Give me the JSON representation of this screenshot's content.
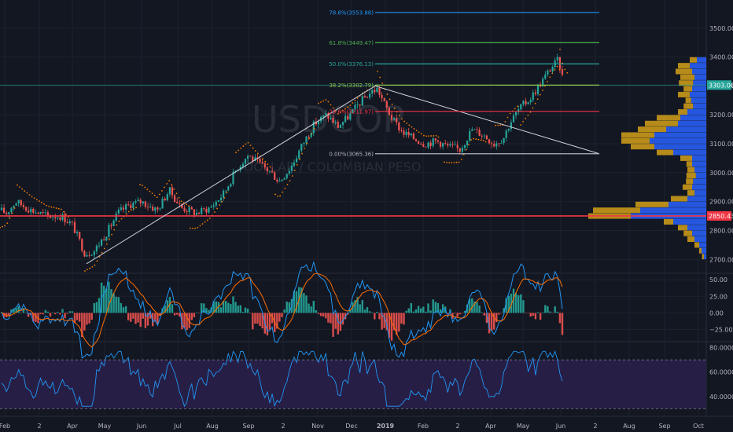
{
  "watermark": {
    "symbol": "USDCOP",
    "name": "DOLLAR / COLOMBIAN PESO"
  },
  "colors": {
    "background": "#131722",
    "up": "#26a69a",
    "down": "#ef5350",
    "grid": "#1e222d",
    "sar": "#f57c00",
    "macd": "#2196f3",
    "signal": "#ff6d00",
    "rsi": "#2196f3",
    "rsi_band": "#2a1f4a",
    "support": "#f23645",
    "trendline": "#d1d4dc",
    "vp_up": "#2962ff",
    "vp_down": "#d4a017"
  },
  "chart_data": [
    {
      "type": "candlestick",
      "panel": "price",
      "symbol": "USDCOP",
      "description_text": "DOLLAR / COLOMBIAN PESO",
      "x_ticks": [
        "Feb",
        "2",
        "Apr",
        "May",
        "Jun",
        "Jul",
        "Aug",
        "Sep",
        "2",
        "Nov",
        "Dec",
        "2019",
        "Feb",
        "2",
        "Apr",
        "May",
        "Jun",
        "2",
        "Aug",
        "Sep",
        "Oct"
      ],
      "y_ticks": [
        2700,
        2800,
        2900,
        3000,
        3100,
        3200,
        3300,
        3400,
        3500
      ],
      "y_tick_labels": [
        "2700.00",
        "2800.00",
        "2900.00",
        "3000.00",
        "3100.00",
        "3200.00",
        "3300.00",
        "3400.00",
        "3500.00"
      ],
      "ylim": [
        2660,
        3570
      ],
      "price_path": [
        [
          0,
          2870
        ],
        [
          8,
          2860
        ],
        [
          20,
          2900
        ],
        [
          40,
          2870
        ],
        [
          60,
          2850
        ],
        [
          78,
          2850
        ],
        [
          92,
          2820
        ],
        [
          108,
          2720
        ],
        [
          120,
          2730
        ],
        [
          135,
          2790
        ],
        [
          150,
          2860
        ],
        [
          165,
          2890
        ],
        [
          180,
          2900
        ],
        [
          200,
          2870
        ],
        [
          215,
          2940
        ],
        [
          230,
          2880
        ],
        [
          250,
          2860
        ],
        [
          268,
          2880
        ],
        [
          285,
          2930
        ],
        [
          300,
          3010
        ],
        [
          315,
          3060
        ],
        [
          330,
          3030
        ],
        [
          345,
          3000
        ],
        [
          355,
          2970
        ],
        [
          370,
          3020
        ],
        [
          385,
          3100
        ],
        [
          400,
          3170
        ],
        [
          415,
          3200
        ],
        [
          430,
          3160
        ],
        [
          445,
          3200
        ],
        [
          460,
          3250
        ],
        [
          472,
          3280
        ],
        [
          480,
          3290
        ],
        [
          490,
          3230
        ],
        [
          500,
          3180
        ],
        [
          512,
          3140
        ],
        [
          525,
          3120
        ],
        [
          540,
          3100
        ],
        [
          555,
          3110
        ],
        [
          570,
          3090
        ],
        [
          585,
          3080
        ],
        [
          600,
          3150
        ],
        [
          615,
          3130
        ],
        [
          628,
          3100
        ],
        [
          640,
          3120
        ],
        [
          648,
          3170
        ],
        [
          660,
          3220
        ],
        [
          675,
          3260
        ],
        [
          690,
          3320
        ],
        [
          700,
          3360
        ],
        [
          710,
          3390
        ],
        [
          716,
          3320
        ]
      ],
      "annotations": [
        {
          "type": "hline",
          "y": 2850.43,
          "label": "2850.43",
          "color": "#f23645"
        },
        {
          "type": "hline",
          "y": 3303.0,
          "label": "3303.00",
          "color": "#26a69a"
        },
        {
          "type": "trendline",
          "from": {
            "date": "Apr",
            "y": 2685
          },
          "to": {
            "date": "Dec",
            "y": 3300
          }
        },
        {
          "type": "trendline",
          "from": {
            "date": "Dec",
            "y": 3300
          },
          "to": {
            "date": "2",
            "y": 3065.36
          }
        }
      ],
      "fibonacci": [
        {
          "level": "78.6%",
          "value": 3553.88,
          "label": "78.6%(3553.88)",
          "color": "#2196f3"
        },
        {
          "level": "61.8%",
          "value": 3449.47,
          "label": "61.8%(3449.47)",
          "color": "#4caf50"
        },
        {
          "level": "50.0%",
          "value": 3376.13,
          "label": "50.0%(3376.13)",
          "color": "#26a69a"
        },
        {
          "level": "38.2%",
          "value": 3302.79,
          "label": "38.2%(3302.79)",
          "color": "#8bc34a"
        },
        {
          "level": "23.6%",
          "value": 3211.97,
          "label": "23.6%(3211.97)",
          "color": "#f23645"
        },
        {
          "level": "0.0%",
          "value": 3065.36,
          "label": "0.00%(3065.36)",
          "color": "#b2b5be"
        }
      ],
      "volume_profile": [
        {
          "price": 3390,
          "up": 20,
          "down": 15
        },
        {
          "price": 3370,
          "up": 35,
          "down": 25
        },
        {
          "price": 3350,
          "up": 30,
          "down": 35
        },
        {
          "price": 3330,
          "up": 25,
          "down": 30
        },
        {
          "price": 3310,
          "up": 28,
          "down": 30
        },
        {
          "price": 3290,
          "up": 30,
          "down": 18
        },
        {
          "price": 3270,
          "up": 35,
          "down": 25
        },
        {
          "price": 3250,
          "up": 32,
          "down": 12
        },
        {
          "price": 3230,
          "up": 28,
          "down": 20
        },
        {
          "price": 3210,
          "up": 40,
          "down": 20
        },
        {
          "price": 3190,
          "up": 55,
          "down": 50
        },
        {
          "price": 3170,
          "up": 60,
          "down": 70
        },
        {
          "price": 3150,
          "up": 85,
          "down": 60
        },
        {
          "price": 3130,
          "up": 110,
          "down": 70
        },
        {
          "price": 3110,
          "up": 120,
          "down": 60
        },
        {
          "price": 3090,
          "up": 110,
          "down": 50
        },
        {
          "price": 3070,
          "up": 70,
          "down": 35
        },
        {
          "price": 3050,
          "up": 30,
          "down": 25
        },
        {
          "price": 3030,
          "up": 30,
          "down": 12
        },
        {
          "price": 3010,
          "up": 25,
          "down": 15
        },
        {
          "price": 2990,
          "up": 22,
          "down": 20
        },
        {
          "price": 2970,
          "up": 28,
          "down": 15
        },
        {
          "price": 2950,
          "up": 30,
          "down": 20
        },
        {
          "price": 2930,
          "up": 25,
          "down": 15
        },
        {
          "price": 2910,
          "up": 40,
          "down": 35
        },
        {
          "price": 2890,
          "up": 80,
          "down": 70
        },
        {
          "price": 2870,
          "up": 140,
          "down": 100
        },
        {
          "price": 2850,
          "up": 160,
          "down": 90
        },
        {
          "price": 2830,
          "up": 70,
          "down": 20
        },
        {
          "price": 2810,
          "up": 40,
          "down": 20
        },
        {
          "price": 2790,
          "up": 30,
          "down": 18
        },
        {
          "price": 2770,
          "up": 25,
          "down": 15
        },
        {
          "price": 2750,
          "up": 15,
          "down": 10
        },
        {
          "price": 2730,
          "up": 10,
          "down": 5
        },
        {
          "price": 2710,
          "up": 5,
          "down": 4
        }
      ]
    },
    {
      "type": "macd",
      "panel": "macd",
      "y_ticks": [
        50,
        25,
        0,
        -25
      ],
      "y_tick_labels": [
        "50.00",
        "25.00",
        "0.00",
        "−25.00"
      ],
      "ylim": [
        -40,
        55
      ]
    },
    {
      "type": "line",
      "panel": "rsi",
      "y_ticks": [
        80,
        60,
        40
      ],
      "y_tick_labels": [
        "80.0000",
        "60.0000",
        "40.0000"
      ],
      "ylim": [
        27,
        83
      ],
      "bands": [
        70,
        30
      ]
    }
  ],
  "price_labels": [
    {
      "text": "3303.00",
      "color": "#26a69a"
    },
    {
      "text": "2850.43",
      "color": "#f23645"
    }
  ]
}
